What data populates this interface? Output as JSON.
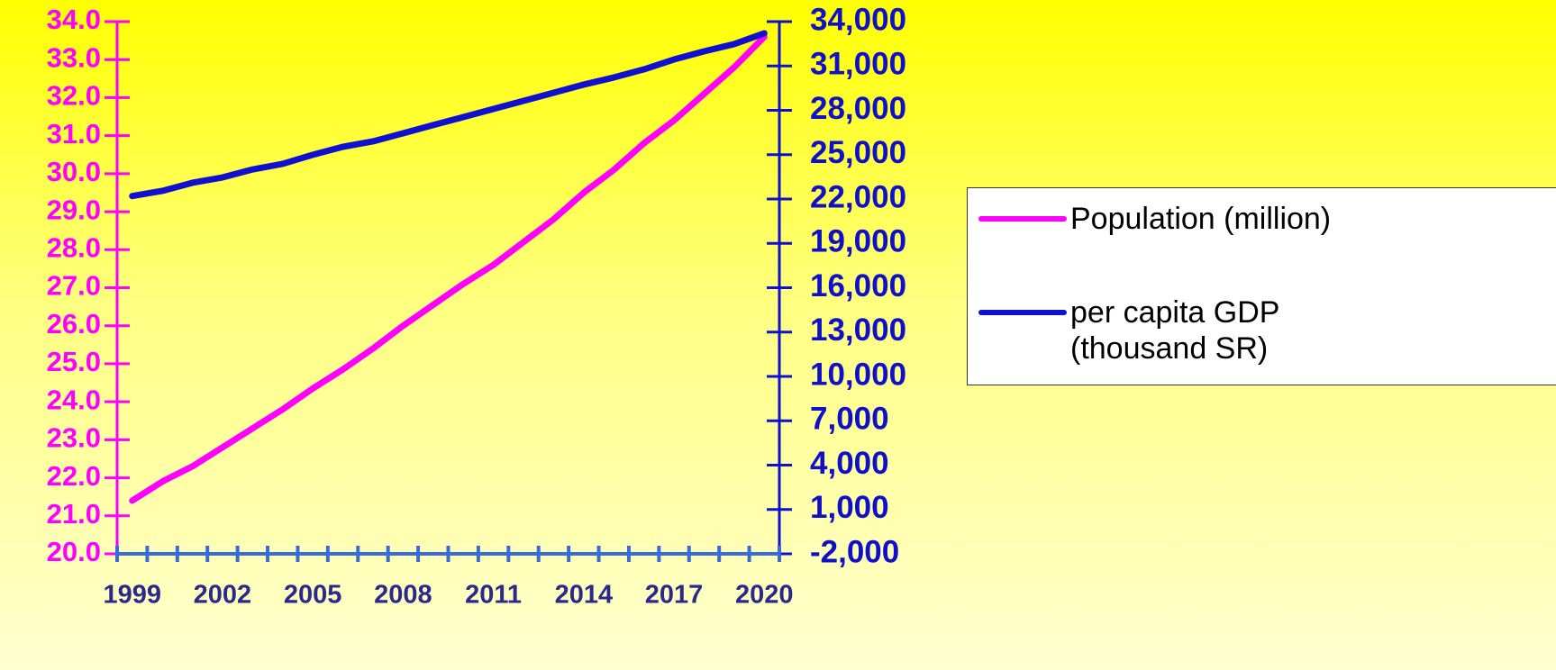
{
  "chart_data": {
    "type": "line",
    "categories": [
      "1999",
      null,
      null,
      "2002",
      null,
      null,
      "2005",
      null,
      null,
      "2008",
      null,
      null,
      "2011",
      null,
      null,
      "2014",
      null,
      null,
      "2017",
      null,
      null,
      "2020"
    ],
    "series": [
      {
        "name": "Population (million)",
        "color": "#ff00ff",
        "axis": "y",
        "values": [
          21.4,
          21.9,
          22.3,
          22.8,
          23.3,
          23.8,
          24.35,
          24.85,
          25.4,
          26.0,
          26.55,
          27.1,
          27.6,
          28.2,
          28.8,
          29.5,
          30.1,
          30.8,
          31.4,
          32.1,
          32.8,
          33.6
        ]
      },
      {
        "name": "per capita GDP (thousand SR)",
        "color": "#1010d0",
        "axis": "y2",
        "values": [
          22200,
          22550,
          23100,
          23460,
          24000,
          24380,
          24990,
          25530,
          25900,
          26450,
          27000,
          27540,
          28090,
          28640,
          29190,
          29740,
          30220,
          30770,
          31440,
          31990,
          32480,
          33210
        ]
      }
    ],
    "ylim": [
      20,
      34
    ],
    "yticks": [
      {
        "value": 20,
        "label": "20.0"
      },
      {
        "value": 21,
        "label": "21.0"
      },
      {
        "value": 22,
        "label": "22.0"
      },
      {
        "value": 23,
        "label": "23.0"
      },
      {
        "value": 24,
        "label": "24.0"
      },
      {
        "value": 25,
        "label": "25.0"
      },
      {
        "value": 26,
        "label": "26.0"
      },
      {
        "value": 27,
        "label": "27.0"
      },
      {
        "value": 28,
        "label": "28.0"
      },
      {
        "value": 29,
        "label": "29.0"
      },
      {
        "value": 30,
        "label": "30.0"
      },
      {
        "value": 31,
        "label": "31.0"
      },
      {
        "value": 32,
        "label": "32.0"
      },
      {
        "value": 33,
        "label": "33.0"
      },
      {
        "value": 34,
        "label": "34.0"
      }
    ],
    "y2lim": [
      -2000,
      34000
    ],
    "y2ticks": [
      {
        "value": -2000,
        "label": "-2,000"
      },
      {
        "value": 1000,
        "label": "1,000"
      },
      {
        "value": 4000,
        "label": "4,000"
      },
      {
        "value": 7000,
        "label": "7,000"
      },
      {
        "value": 10000,
        "label": "10,000"
      },
      {
        "value": 13000,
        "label": "13,000"
      },
      {
        "value": 16000,
        "label": "16,000"
      },
      {
        "value": 19000,
        "label": "19,000"
      },
      {
        "value": 22000,
        "label": "22,000"
      },
      {
        "value": 25000,
        "label": "25,000"
      },
      {
        "value": 28000,
        "label": "28,000"
      },
      {
        "value": 31000,
        "label": "31,000"
      },
      {
        "value": 34000,
        "label": "34,000"
      }
    ],
    "left_axis_color": "#ff00ff",
    "right_axis_color": "#1010d0",
    "x_axis_color": "#3a6ad8",
    "legend": "right"
  }
}
